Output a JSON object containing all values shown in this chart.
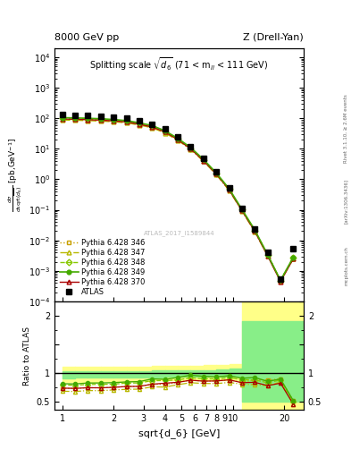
{
  "title_left": "8000 GeV pp",
  "title_right": "Z (Drell-Yan)",
  "plot_title": "Splitting scale $\\sqrt{\\mathbf{d_6}}$ (71 < m$_{ll}$ < 111 GeV)",
  "xlabel": "sqrt{d_6} [GeV]",
  "ylabel_ratio": "Ratio to ATLAS",
  "watermark": "ATLAS_2017_I1589844",
  "right_label": "Rivet 3.1.10, ≥ 2.6M events",
  "right_label2": "[arXiv:1306.3436]",
  "right_label3": "mcplots.cern.ch",
  "x": [
    1.0,
    1.19,
    1.41,
    1.68,
    2.0,
    2.38,
    2.83,
    3.36,
    4.0,
    4.76,
    5.66,
    6.73,
    8.0,
    9.51,
    11.31,
    13.45,
    16.0,
    19.03,
    22.63
  ],
  "atlas_y": [
    130,
    128,
    122,
    118,
    110,
    100,
    84,
    65,
    44,
    24,
    11.5,
    4.8,
    1.75,
    0.52,
    0.115,
    0.024,
    0.004,
    0.00055,
    0.0055
  ],
  "py346_y": [
    95,
    93,
    90,
    87,
    82,
    76,
    64,
    52,
    35,
    20,
    10,
    4.1,
    1.5,
    0.455,
    0.096,
    0.021,
    0.0035,
    0.00049,
    0.0028
  ],
  "py347_y": [
    88,
    86,
    84,
    81,
    77,
    71,
    60,
    49,
    33,
    19,
    9.5,
    3.9,
    1.42,
    0.432,
    0.092,
    0.019,
    0.0031,
    0.00046,
    0.0025
  ],
  "py348_y": [
    102,
    100,
    97,
    94,
    88,
    82,
    69,
    56,
    38,
    21,
    10.5,
    4.3,
    1.56,
    0.476,
    0.101,
    0.021,
    0.0033,
    0.00048,
    0.0027
  ],
  "py349_y": [
    105,
    103,
    100,
    97,
    91,
    84,
    71,
    58,
    39,
    22,
    11,
    4.5,
    1.62,
    0.493,
    0.104,
    0.022,
    0.0034,
    0.00049,
    0.0028
  ],
  "py370_y": [
    95,
    93,
    90,
    87,
    82,
    76,
    64,
    52,
    36,
    20,
    10,
    4.1,
    1.5,
    0.456,
    0.095,
    0.02,
    0.0031,
    0.00045,
    0.0025
  ],
  "ratio346_y": [
    0.73,
    0.727,
    0.738,
    0.737,
    0.745,
    0.76,
    0.762,
    0.8,
    0.795,
    0.833,
    0.87,
    0.854,
    0.857,
    0.875,
    0.835,
    0.875,
    0.875,
    0.891,
    0.51
  ],
  "ratio347_y": [
    0.677,
    0.672,
    0.689,
    0.686,
    0.7,
    0.71,
    0.714,
    0.754,
    0.75,
    0.792,
    0.826,
    0.813,
    0.811,
    0.831,
    0.8,
    0.792,
    0.775,
    0.836,
    0.45
  ],
  "ratio348_y": [
    0.785,
    0.781,
    0.795,
    0.797,
    0.8,
    0.82,
    0.821,
    0.862,
    0.864,
    0.875,
    0.913,
    0.896,
    0.891,
    0.915,
    0.878,
    0.875,
    0.825,
    0.873,
    0.49
  ],
  "ratio349_y": [
    0.808,
    0.805,
    0.82,
    0.822,
    0.827,
    0.84,
    0.845,
    0.892,
    0.886,
    0.917,
    0.957,
    0.938,
    0.926,
    0.948,
    0.904,
    0.917,
    0.85,
    0.891,
    0.51
  ],
  "ratio370_y": [
    0.731,
    0.727,
    0.738,
    0.737,
    0.745,
    0.76,
    0.762,
    0.8,
    0.818,
    0.833,
    0.87,
    0.854,
    0.857,
    0.877,
    0.826,
    0.833,
    0.775,
    0.818,
    0.45
  ],
  "band_x_lo": [
    1.0,
    1.19,
    1.41,
    1.68,
    2.0,
    2.38,
    2.83,
    3.36,
    4.0,
    4.76,
    5.66,
    6.73,
    8.0,
    9.51
  ],
  "band_x_hi": [
    1.19,
    1.41,
    1.68,
    2.0,
    2.38,
    2.83,
    3.36,
    4.0,
    4.76,
    5.66,
    6.73,
    8.0,
    9.51,
    11.31
  ],
  "band_green_lo": [
    0.9,
    0.91,
    0.91,
    0.915,
    0.915,
    0.915,
    0.92,
    0.925,
    0.93,
    0.93,
    0.935,
    0.935,
    0.935,
    0.935
  ],
  "band_green_hi": [
    1.02,
    1.02,
    1.025,
    1.025,
    1.03,
    1.03,
    1.03,
    1.035,
    1.04,
    1.04,
    1.045,
    1.05,
    1.06,
    1.075
  ],
  "band_yellow_lo": [
    0.84,
    0.845,
    0.845,
    0.85,
    0.855,
    0.855,
    0.86,
    0.865,
    0.87,
    0.87,
    0.875,
    0.875,
    0.875,
    0.875
  ],
  "band_yellow_hi": [
    1.1,
    1.1,
    1.105,
    1.105,
    1.11,
    1.11,
    1.11,
    1.115,
    1.12,
    1.12,
    1.125,
    1.13,
    1.14,
    1.155
  ],
  "colors": {
    "atlas": "#000000",
    "py346": "#c8a000",
    "py347": "#b8b800",
    "py348": "#88c800",
    "py349": "#44aa00",
    "py370": "#aa0000"
  },
  "ylim_main": [
    0.0001,
    20000.0
  ],
  "ylim_ratio": [
    0.35,
    2.25
  ],
  "xlim": [
    0.9,
    26.0
  ]
}
